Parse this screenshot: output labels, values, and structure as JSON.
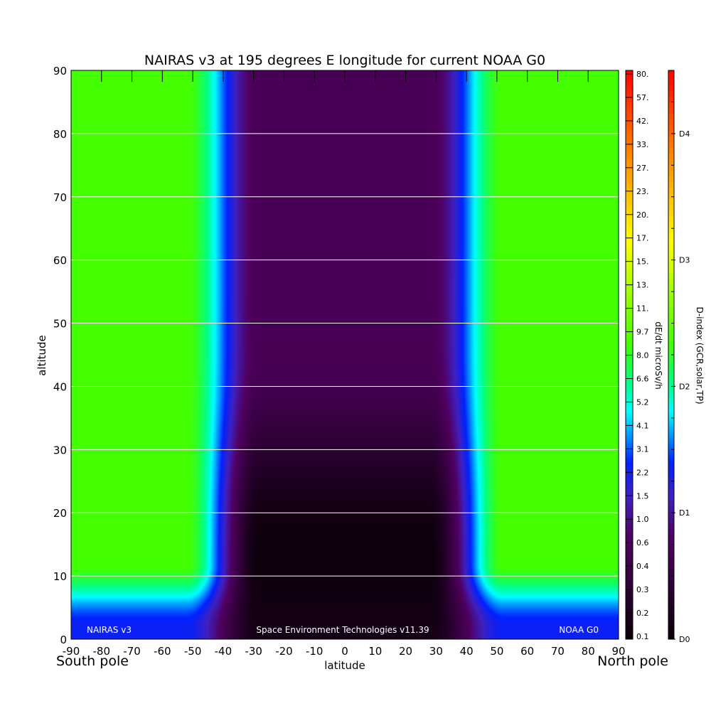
{
  "chart_data": {
    "type": "heatmap",
    "title": "NAIRAS v3 at 195 degrees E longitude for current NOAA G0",
    "xlabel": "latitude",
    "ylabel": "altitude",
    "x_range": [
      -90,
      90
    ],
    "y_range": [
      0,
      90
    ],
    "x_ticks": [
      -90,
      -80,
      -70,
      -60,
      -50,
      -40,
      -30,
      -20,
      -10,
      0,
      10,
      20,
      30,
      40,
      50,
      60,
      70,
      80,
      90
    ],
    "x_tick_labels": [
      "-90",
      "-80",
      "-70",
      "-60",
      "-50",
      "-40",
      "-30",
      "-20",
      "-10",
      "0",
      "10",
      "20",
      "30",
      "40",
      "50",
      "60",
      "70",
      "80",
      "90"
    ],
    "y_ticks": [
      0,
      10,
      20,
      30,
      40,
      50,
      60,
      70,
      80,
      90
    ],
    "y_tick_labels": [
      "0",
      "10",
      "20",
      "30",
      "40",
      "50",
      "60",
      "70",
      "80",
      "90"
    ],
    "horizontal_gridlines": [
      10,
      20,
      30,
      40,
      50,
      60,
      70,
      80
    ],
    "x_end_labels": {
      "left": "South pole",
      "right": "North pole"
    },
    "bottom_annotations": {
      "left": "NAIRAS v3",
      "center": "Space Environment Technologies v11.39",
      "right": "NOAA G0"
    },
    "colorbar_dose": {
      "label": "dE/dt microSv/h",
      "tick_labels": [
        "0.1",
        "0.2",
        "0.3",
        "0.4",
        "0.6",
        "1.0",
        "1.5",
        "2.2",
        "3.1",
        "4.1",
        "5.2",
        "6.6",
        "8.0",
        "9.7",
        "11.",
        "13.",
        "15.",
        "17.",
        "20.",
        "23.",
        "27.",
        "33.",
        "42.",
        "57.",
        "80."
      ]
    },
    "colorbar_dindex": {
      "label": "D-index (GCR,solar,TP)",
      "tick_labels": [
        "D0",
        "D1",
        "D2",
        "D3",
        "D4"
      ],
      "tick_values": [
        0,
        0.5,
        1.0,
        1.5,
        2.0
      ],
      "range": [
        0,
        2.25
      ]
    },
    "colors": {
      "black": "#0a0008",
      "dark_purple": "#2a0030",
      "purple": "#500060",
      "blue_purple": "#4020c0",
      "blue": "#0020ff",
      "cyan": "#00ffff",
      "green_cyan": "#00ff88",
      "green": "#44ff00",
      "yellow": "#ffff00",
      "orange": "#ff8800",
      "red": "#ff0000"
    }
  }
}
